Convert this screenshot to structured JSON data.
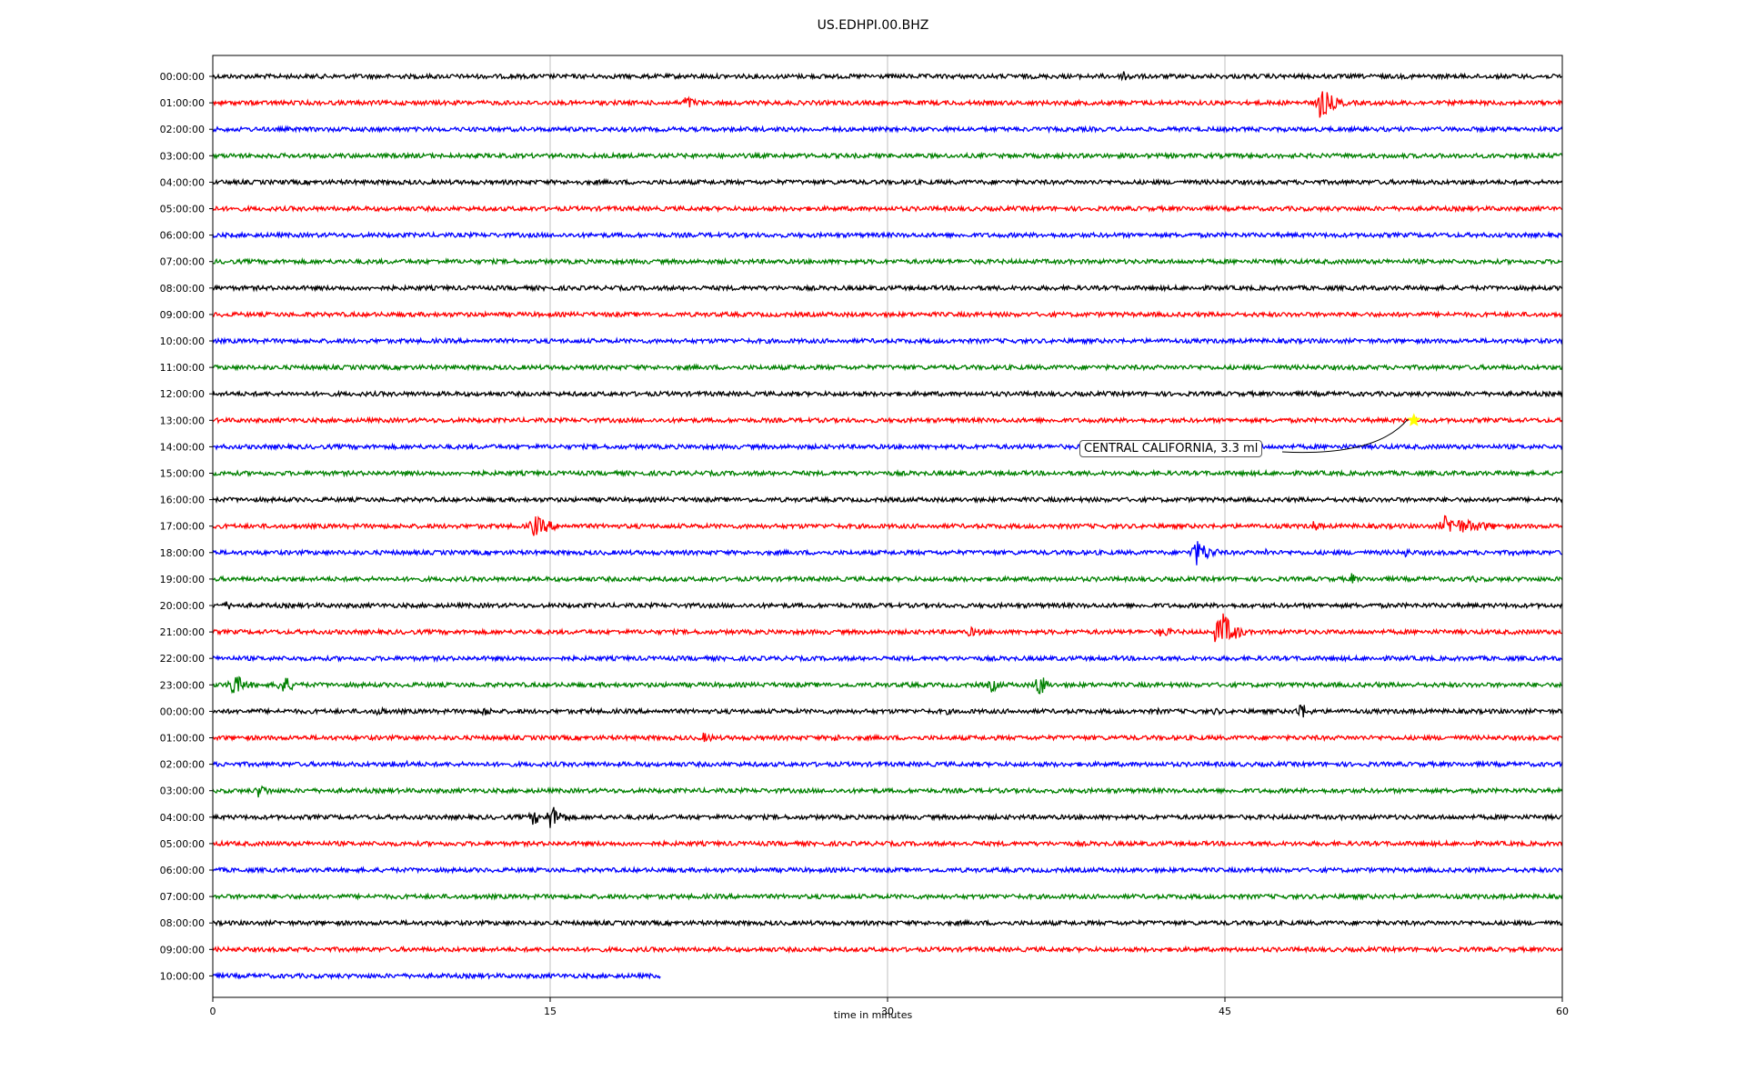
{
  "chart_data": {
    "type": "line",
    "title": "US.EDHPI.00.BHZ",
    "xlabel": "time in minutes",
    "ylabel": "",
    "xlim": [
      0,
      60
    ],
    "x_ticks": [
      0,
      15,
      30,
      45,
      60
    ],
    "grid": "vertical",
    "trace_colors": [
      "#000000",
      "#ff0000",
      "#0000ff",
      "#008000"
    ],
    "rows": [
      {
        "label": "00:00:00",
        "end": 60,
        "bursts": [
          {
            "t": 13.2,
            "a": 4,
            "d": 1.2
          },
          {
            "t": 27.0,
            "a": 3,
            "d": 0.3
          },
          {
            "t": 40.5,
            "a": 9,
            "d": 0.8
          }
        ]
      },
      {
        "label": "01:00:00",
        "end": 60,
        "bursts": [
          {
            "t": 5.2,
            "a": 3,
            "d": 0.3
          },
          {
            "t": 21.0,
            "a": 9,
            "d": 1.2
          },
          {
            "t": 49.2,
            "a": 20,
            "d": 1.4
          }
        ]
      },
      {
        "label": "02:00:00",
        "end": 60,
        "bursts": []
      },
      {
        "label": "03:00:00",
        "end": 60,
        "bursts": []
      },
      {
        "label": "04:00:00",
        "end": 60,
        "bursts": []
      },
      {
        "label": "05:00:00",
        "end": 60,
        "bursts": [
          {
            "t": 28.2,
            "a": 2,
            "d": 0.3
          }
        ]
      },
      {
        "label": "06:00:00",
        "end": 60,
        "bursts": [
          {
            "t": 1.0,
            "a": 3,
            "d": 0.5
          },
          {
            "t": 55.5,
            "a": 2,
            "d": 0.3
          }
        ]
      },
      {
        "label": "07:00:00",
        "end": 60,
        "bursts": []
      },
      {
        "label": "08:00:00",
        "end": 60,
        "bursts": []
      },
      {
        "label": "09:00:00",
        "end": 60,
        "bursts": []
      },
      {
        "label": "10:00:00",
        "end": 60,
        "bursts": []
      },
      {
        "label": "11:00:00",
        "end": 60,
        "bursts": []
      },
      {
        "label": "12:00:00",
        "end": 60,
        "bursts": []
      },
      {
        "label": "13:00:00",
        "end": 60,
        "bursts": [
          {
            "t": 54.0,
            "a": 3,
            "d": 0.8
          }
        ]
      },
      {
        "label": "14:00:00",
        "end": 60,
        "bursts": [
          {
            "t": 19.5,
            "a": 2,
            "d": 0.3
          }
        ]
      },
      {
        "label": "15:00:00",
        "end": 60,
        "bursts": []
      },
      {
        "label": "16:00:00",
        "end": 60,
        "bursts": []
      },
      {
        "label": "17:00:00",
        "end": 60,
        "bursts": [
          {
            "t": 14.2,
            "a": 14,
            "d": 1.8
          },
          {
            "t": 32.0,
            "a": 3,
            "d": 0.4
          },
          {
            "t": 48.9,
            "a": 8,
            "d": 0.8
          },
          {
            "t": 54.7,
            "a": 12,
            "d": 4.0
          }
        ]
      },
      {
        "label": "18:00:00",
        "end": 60,
        "bursts": [
          {
            "t": 30.5,
            "a": 3,
            "d": 0.4
          },
          {
            "t": 43.6,
            "a": 18,
            "d": 1.5
          },
          {
            "t": 46.8,
            "a": 6,
            "d": 0.5
          },
          {
            "t": 53.0,
            "a": 6,
            "d": 0.8
          },
          {
            "t": 57.8,
            "a": 5,
            "d": 0.4
          }
        ]
      },
      {
        "label": "19:00:00",
        "end": 60,
        "bursts": [
          {
            "t": 50.6,
            "a": 8,
            "d": 0.6
          },
          {
            "t": 56.0,
            "a": 4,
            "d": 2.5
          }
        ]
      },
      {
        "label": "20:00:00",
        "end": 60,
        "bursts": [
          {
            "t": 0.6,
            "a": 7,
            "d": 0.6
          }
        ]
      },
      {
        "label": "21:00:00",
        "end": 60,
        "bursts": [
          {
            "t": 33.6,
            "a": 6,
            "d": 2.0
          },
          {
            "t": 42.0,
            "a": 6,
            "d": 2.5
          },
          {
            "t": 44.7,
            "a": 30,
            "d": 1.3
          }
        ]
      },
      {
        "label": "22:00:00",
        "end": 60,
        "bursts": []
      },
      {
        "label": "23:00:00",
        "end": 60,
        "bursts": [
          {
            "t": 0.8,
            "a": 16,
            "d": 1.3
          },
          {
            "t": 3.0,
            "a": 14,
            "d": 1.2
          },
          {
            "t": 5.3,
            "a": 3,
            "d": 0.3
          },
          {
            "t": 31.0,
            "a": 4,
            "d": 0.8
          },
          {
            "t": 34.6,
            "a": 9,
            "d": 1.0
          },
          {
            "t": 36.7,
            "a": 20,
            "d": 0.6
          },
          {
            "t": 51.7,
            "a": 4,
            "d": 0.3
          },
          {
            "t": 58.5,
            "a": 3,
            "d": 1.0
          }
        ]
      },
      {
        "label": "00:00:00",
        "end": 60,
        "bursts": [
          {
            "t": 2.0,
            "a": 4,
            "d": 0.8
          },
          {
            "t": 7.4,
            "a": 10,
            "d": 0.5
          },
          {
            "t": 12.0,
            "a": 7,
            "d": 1.0
          },
          {
            "t": 16.8,
            "a": 4,
            "d": 0.5
          },
          {
            "t": 32.6,
            "a": 4,
            "d": 1.0
          },
          {
            "t": 42.0,
            "a": 4,
            "d": 0.5
          },
          {
            "t": 44.5,
            "a": 6,
            "d": 0.8
          },
          {
            "t": 48.3,
            "a": 14,
            "d": 0.8
          }
        ]
      },
      {
        "label": "01:00:00",
        "end": 60,
        "bursts": [
          {
            "t": 21.8,
            "a": 6,
            "d": 1.5
          },
          {
            "t": 27.5,
            "a": 5,
            "d": 2.0
          },
          {
            "t": 42.5,
            "a": 3,
            "d": 0.4
          },
          {
            "t": 47.2,
            "a": 3,
            "d": 0.3
          }
        ]
      },
      {
        "label": "02:00:00",
        "end": 60,
        "bursts": [
          {
            "t": 8.0,
            "a": 4,
            "d": 6.0
          },
          {
            "t": 19.0,
            "a": 4,
            "d": 1.2
          }
        ]
      },
      {
        "label": "03:00:00",
        "end": 60,
        "bursts": [
          {
            "t": 2.0,
            "a": 8,
            "d": 1.5
          },
          {
            "t": 5.0,
            "a": 3,
            "d": 0.5
          },
          {
            "t": 14.7,
            "a": 3,
            "d": 0.5
          }
        ]
      },
      {
        "label": "04:00:00",
        "end": 60,
        "bursts": [
          {
            "t": 14.2,
            "a": 10,
            "d": 1.0
          },
          {
            "t": 15.0,
            "a": 16,
            "d": 1.2
          }
        ]
      },
      {
        "label": "05:00:00",
        "end": 60,
        "bursts": []
      },
      {
        "label": "06:00:00",
        "end": 60,
        "bursts": [
          {
            "t": 47.0,
            "a": 2,
            "d": 0.3
          }
        ]
      },
      {
        "label": "07:00:00",
        "end": 60,
        "bursts": [
          {
            "t": 10.5,
            "a": 2,
            "d": 0.4
          }
        ]
      },
      {
        "label": "08:00:00",
        "end": 60,
        "bursts": []
      },
      {
        "label": "09:00:00",
        "end": 60,
        "bursts": [
          {
            "t": 52.0,
            "a": 2,
            "d": 0.3
          }
        ]
      },
      {
        "label": "10:00:00",
        "end": 19.9,
        "bursts": []
      }
    ],
    "event": {
      "label": "CENTRAL CALIFORNIA, 3.3 ml",
      "row": 13,
      "t": 53.4,
      "marker": "star",
      "marker_color": "#ffff00"
    }
  }
}
